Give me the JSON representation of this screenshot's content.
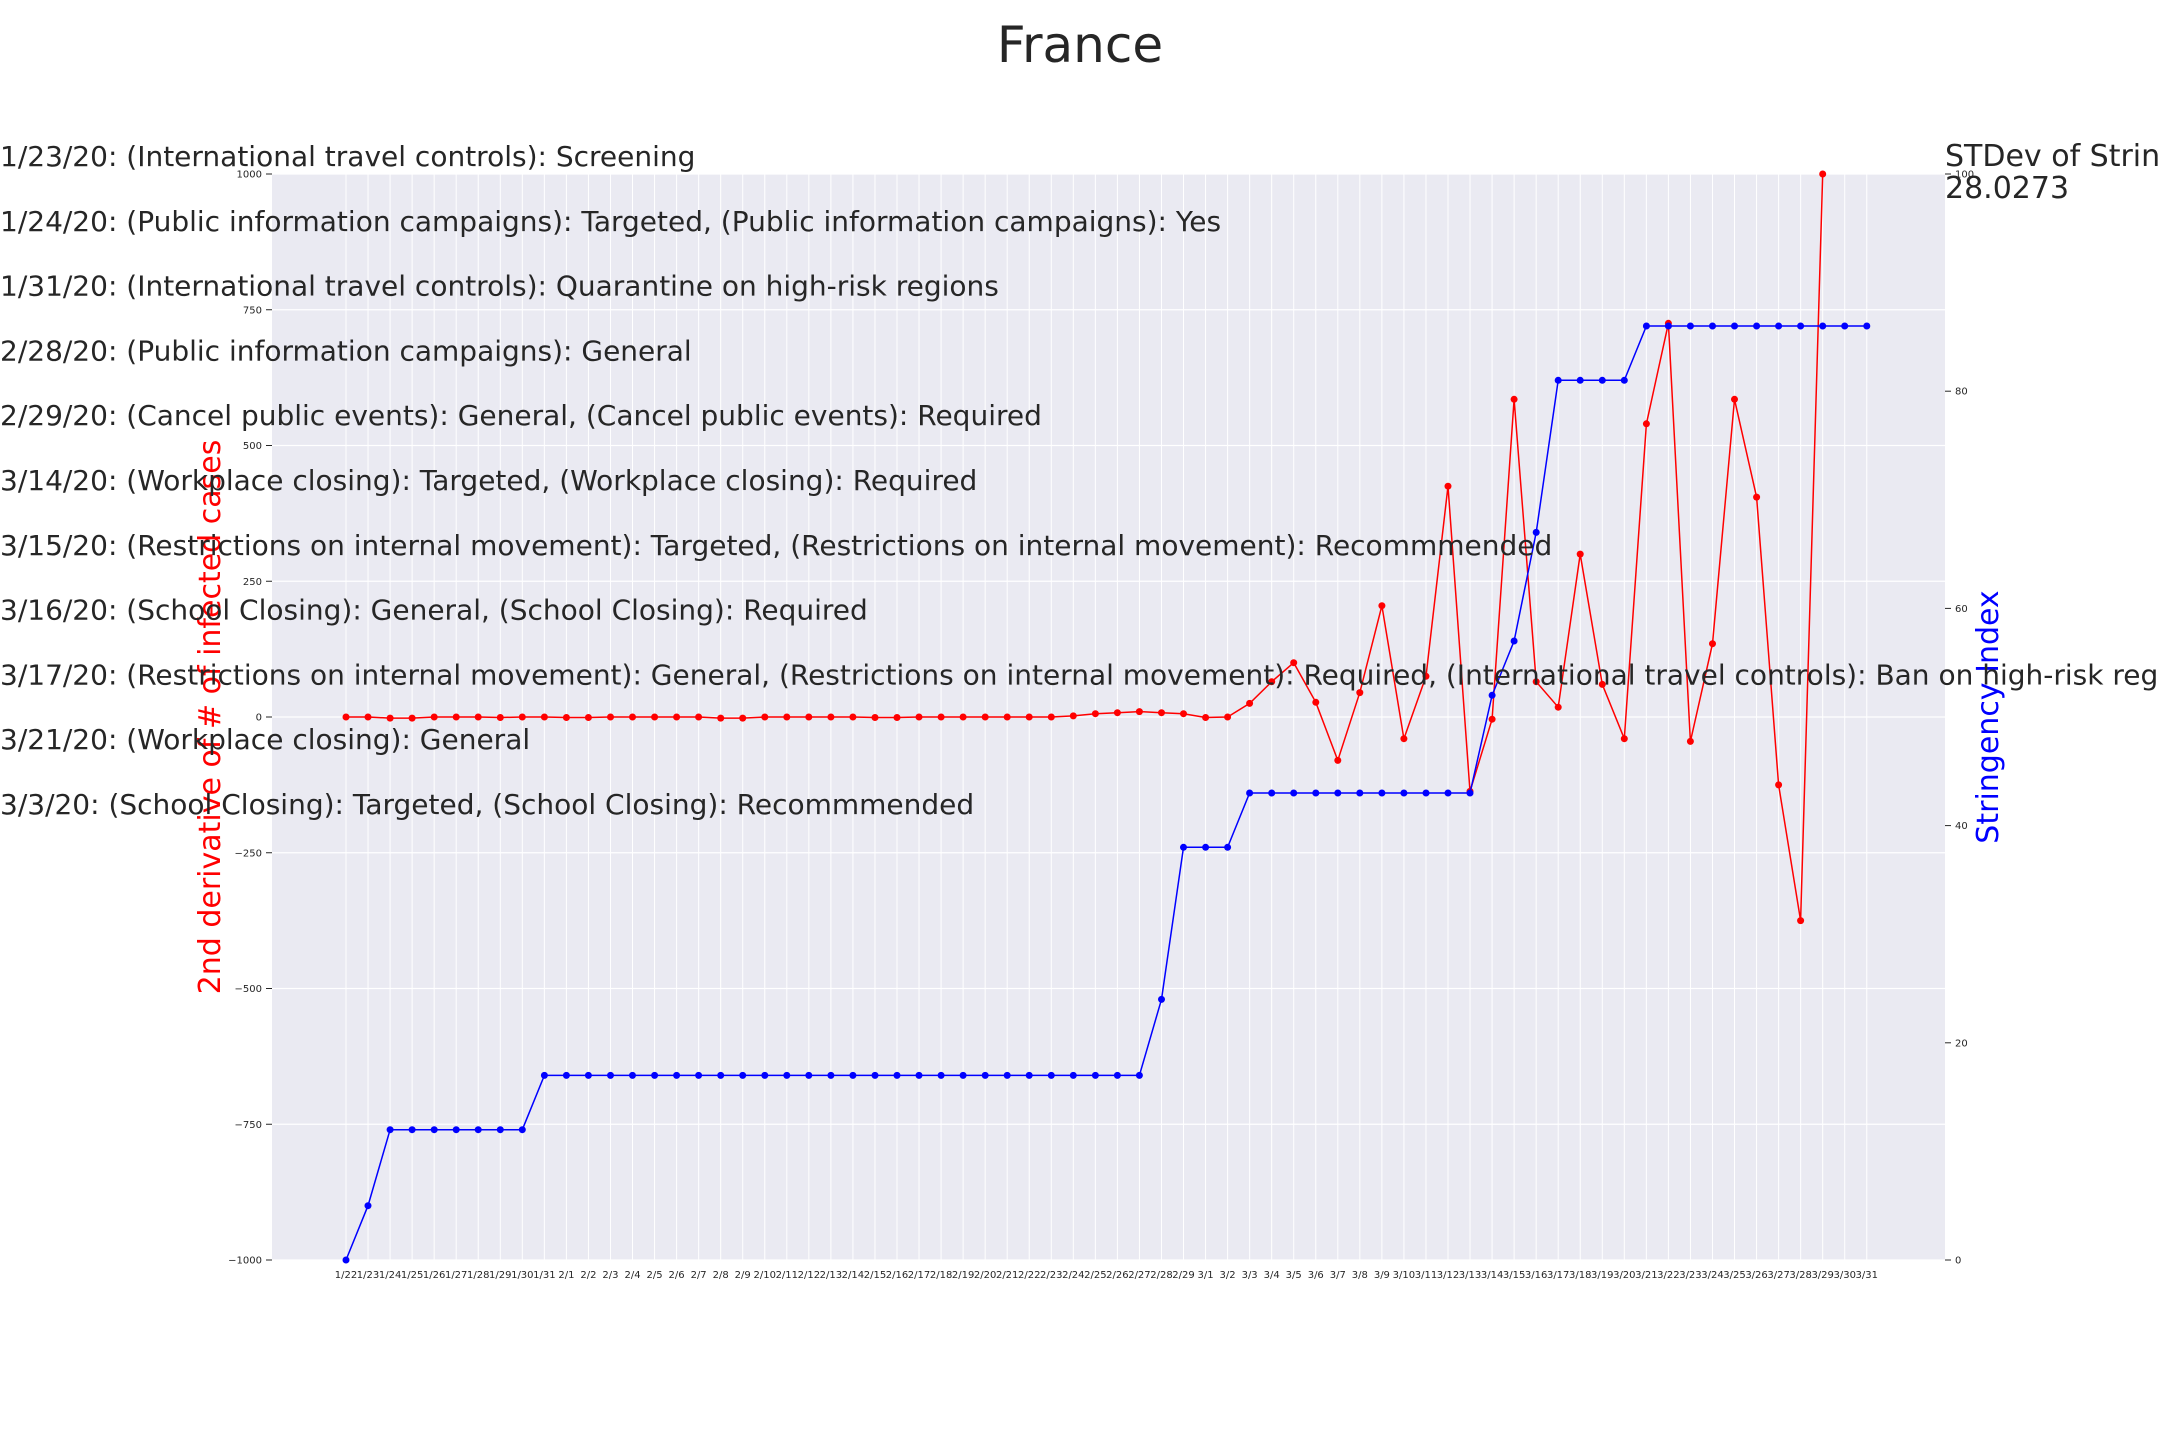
{
  "chart_data": {
    "type": "line",
    "title": "France",
    "x": [
      "1/22",
      "1/23",
      "1/24",
      "1/25",
      "1/26",
      "1/27",
      "1/28",
      "1/29",
      "1/30",
      "1/31",
      "2/1",
      "2/2",
      "2/3",
      "2/4",
      "2/5",
      "2/6",
      "2/7",
      "2/8",
      "2/9",
      "2/10",
      "2/11",
      "2/12",
      "2/13",
      "2/14",
      "2/15",
      "2/16",
      "2/17",
      "2/18",
      "2/19",
      "2/20",
      "2/21",
      "2/22",
      "2/23",
      "2/24",
      "2/25",
      "2/26",
      "2/27",
      "2/28",
      "2/29",
      "3/1",
      "3/2",
      "3/3",
      "3/4",
      "3/5",
      "3/6",
      "3/7",
      "3/8",
      "3/9",
      "3/10",
      "3/11",
      "3/12",
      "3/13",
      "3/14",
      "3/15",
      "3/16",
      "3/17",
      "3/18",
      "3/19",
      "3/20",
      "3/21",
      "3/22",
      "3/23",
      "3/24",
      "3/25",
      "3/26",
      "3/27",
      "3/28",
      "3/29",
      "3/30",
      "3/31"
    ],
    "left_axis": {
      "label": "2nd derivative of # of infected cases",
      "ylim": [
        -1000,
        1000
      ],
      "ticks": [
        -1000,
        -750,
        -500,
        -250,
        0,
        250,
        500,
        750,
        1000
      ],
      "color": "#ff0000"
    },
    "right_axis": {
      "label": "Stringency Index",
      "ylim": [
        0,
        100
      ],
      "ticks": [
        0,
        20,
        40,
        60,
        80,
        100
      ],
      "color": "#0000ff"
    },
    "series": [
      {
        "axis": "left",
        "color": "#ff0000",
        "values": [
          0,
          0,
          -2,
          -2,
          0,
          0,
          0,
          -1,
          0,
          0,
          -1,
          -1,
          0,
          0,
          0,
          0,
          0,
          -2,
          -2,
          0,
          0,
          0,
          0,
          0,
          -1,
          -1,
          0,
          0,
          0,
          0,
          0,
          0,
          0,
          2,
          6,
          8,
          10,
          8,
          6,
          -1,
          0,
          25,
          65,
          100,
          27,
          -80,
          45,
          205,
          -40,
          75,
          425,
          -137,
          -4,
          585,
          65,
          18,
          300,
          60,
          -40,
          540,
          725,
          -45,
          135,
          585,
          405,
          -125,
          -375,
          1000,
          null,
          null
        ]
      },
      {
        "axis": "right",
        "color": "#0000ff",
        "values": [
          0,
          5,
          12,
          12,
          12,
          12,
          12,
          12,
          12,
          17,
          17,
          17,
          17,
          17,
          17,
          17,
          17,
          17,
          17,
          17,
          17,
          17,
          17,
          17,
          17,
          17,
          17,
          17,
          17,
          17,
          17,
          17,
          17,
          17,
          17,
          17,
          17,
          24,
          38,
          38,
          38,
          43,
          43,
          43,
          43,
          43,
          43,
          43,
          43,
          43,
          43,
          43,
          52,
          57,
          67,
          81,
          81,
          81,
          81,
          86,
          86,
          86,
          86,
          86,
          86,
          86,
          86,
          86,
          86,
          86
        ]
      }
    ],
    "annotations": [
      "1/23/20: (International travel controls): Screening",
      "1/24/20: (Public information campaigns): Targeted, (Public information campaigns): Yes",
      "1/31/20: (International travel controls): Quarantine on high-risk regions",
      "2/28/20: (Public information campaigns): General",
      "2/29/20: (Cancel public events): General, (Cancel public events): Required",
      "3/14/20: (Workplace closing): Targeted, (Workplace closing): Required",
      "3/15/20: (Restrictions on internal movement): Targeted, (Restrictions on internal movement): Recommmended",
      "3/16/20: (School Closing): General, (School Closing): Required",
      "3/17/20: (Restrictions on internal movement): General, (Restrictions on internal movement): Required, (International travel controls): Ban on high-risk region",
      "3/21/20: (Workplace closing): General",
      "3/3/20: (School Closing): Targeted, (School Closing): Recommmended"
    ],
    "stdev_label": "STDev of Stringe",
    "stdev_value": "28.0273",
    "grid": true
  }
}
